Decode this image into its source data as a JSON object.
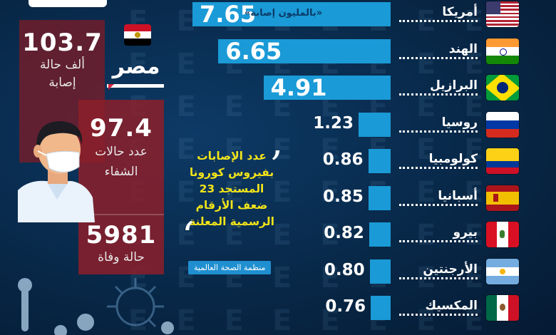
{
  "egypt": {
    "label": "مصر",
    "cases_value": "103.7",
    "cases_label_1": "ألف حالة",
    "cases_label_2": "إصابة",
    "recovered_value": "97.4",
    "recovered_label_1": "عدد حالات",
    "recovered_label_2": "الشفاء",
    "deaths_value": "5981",
    "deaths_label": "حالة وفاة"
  },
  "quote": {
    "lines": [
      "عدد الإصابات",
      "بفيروس كورونا",
      "المستجد 23",
      "ضعف الأرقام",
      "الرسمية المعلنة"
    ],
    "source": "منظمة الصحة العالمية"
  },
  "chart_data": {
    "type": "bar",
    "unit_note": "«بالمليون إصابة»",
    "categories": [
      "أمريكا",
      "الهند",
      "البرازيل",
      "روسيا",
      "كولومبيا",
      "أسبانيا",
      "بيرو",
      "الأرجنتين",
      "المكسيك"
    ],
    "values": [
      7.65,
      6.65,
      4.91,
      1.23,
      0.86,
      0.85,
      0.82,
      0.8,
      0.76
    ],
    "value_labels": [
      "7.65",
      "6.65",
      "4.91",
      "1.23",
      "0.86",
      "0.85",
      "0.82",
      "0.80",
      "0.76"
    ],
    "flags": [
      "usa-flag-icon",
      "india-flag-icon",
      "brazil-flag-icon",
      "russia-flag-icon",
      "colombia-flag-icon",
      "spain-flag-icon",
      "peru-flag-icon",
      "argentina-flag-icon",
      "mexico-flag-icon"
    ],
    "bar_color": "#1a9ad6"
  }
}
